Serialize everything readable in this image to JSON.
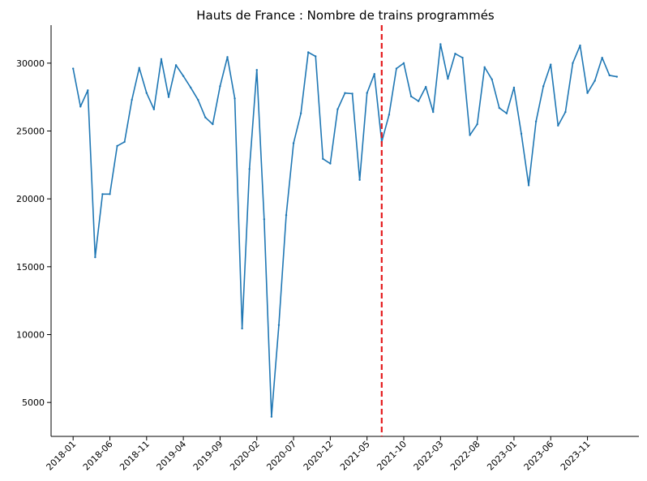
{
  "chart_data": {
    "type": "line",
    "title": "Hauts de France : Nombre de trains programmés",
    "xlabel": "",
    "ylabel": "",
    "x_start": "2018-01",
    "x_ticks": [
      "2018-01",
      "2018-06",
      "2018-11",
      "2019-04",
      "2019-09",
      "2020-02",
      "2020-07",
      "2020-12",
      "2021-05",
      "2021-10",
      "2022-03",
      "2022-08",
      "2023-01",
      "2023-06",
      "2023-11"
    ],
    "y_ticks": [
      5000,
      10000,
      15000,
      20000,
      25000,
      30000
    ],
    "xlim": [
      "2017-10",
      "2024-06"
    ],
    "ylim": [
      2500,
      32800
    ],
    "grid": false,
    "reference_line": {
      "x": "2021-07",
      "color": "#e41a1c",
      "style": "dashed"
    },
    "series": [
      {
        "color": "#1f77b4",
        "x": [
          "2018-01",
          "2018-02",
          "2018-03",
          "2018-04",
          "2018-05",
          "2018-06",
          "2018-07",
          "2018-08",
          "2018-09",
          "2018-10",
          "2018-11",
          "2018-12",
          "2019-01",
          "2019-02",
          "2019-03",
          "2019-04",
          "2019-05",
          "2019-06",
          "2019-07",
          "2019-08",
          "2019-09",
          "2019-10",
          "2019-11",
          "2019-12",
          "2020-01",
          "2020-02",
          "2020-03",
          "2020-04",
          "2020-05",
          "2020-06",
          "2020-07",
          "2020-08",
          "2020-09",
          "2020-10",
          "2020-11",
          "2020-12",
          "2021-01",
          "2021-02",
          "2021-03",
          "2021-04",
          "2021-05",
          "2021-06",
          "2021-07",
          "2021-08",
          "2021-09",
          "2021-10",
          "2021-11",
          "2021-12",
          "2022-01",
          "2022-02",
          "2022-03",
          "2022-04",
          "2022-05",
          "2022-06",
          "2022-07",
          "2022-08",
          "2022-09",
          "2022-10",
          "2022-11",
          "2022-12",
          "2023-01",
          "2023-02",
          "2023-03",
          "2023-04",
          "2023-05",
          "2023-06",
          "2023-07",
          "2023-08",
          "2023-09",
          "2023-10",
          "2023-11",
          "2023-12",
          "2024-01",
          "2024-02",
          "2024-03"
        ],
        "values": [
          29600,
          26800,
          28000,
          15700,
          20350,
          20350,
          23900,
          24200,
          27300,
          29650,
          27800,
          26600,
          30300,
          27500,
          29850,
          29050,
          28200,
          27300,
          26000,
          25500,
          28300,
          30450,
          27400,
          10450,
          22200,
          29500,
          18500,
          3950,
          10700,
          18800,
          24100,
          26300,
          30800,
          30500,
          22950,
          22600,
          26600,
          27800,
          27750,
          21400,
          27800,
          29200,
          24200,
          26200,
          29600,
          30000,
          27550,
          27200,
          28250,
          26400,
          31400,
          28850,
          30700,
          30400,
          24700,
          25500,
          29700,
          28800,
          26700,
          26300,
          28200,
          24800,
          21000,
          25700,
          28300,
          29900,
          25400,
          26400,
          30000,
          31300,
          27800,
          28700,
          30400,
          29100,
          29000
        ]
      }
    ]
  }
}
